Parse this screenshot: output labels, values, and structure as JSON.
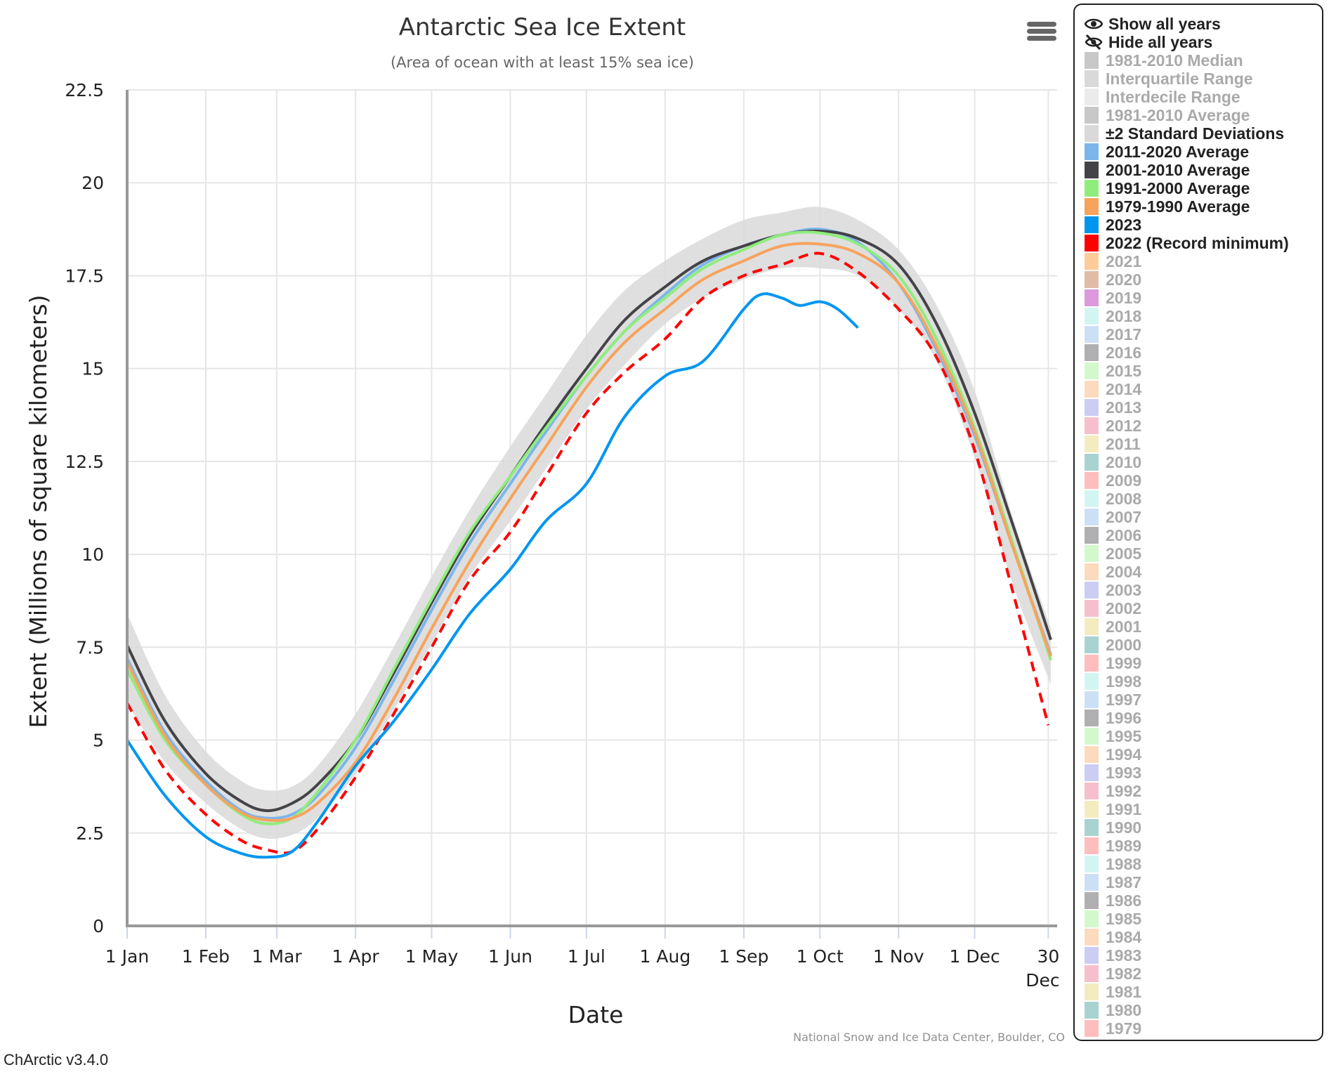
{
  "app": {
    "version": "ChArctic v3.4.0",
    "menu_icon": "hamburger-menu-icon"
  },
  "legend": {
    "show_all": {
      "label": "Show all years",
      "icon": "eye-icon"
    },
    "hide_all": {
      "label": "Hide all years",
      "icon": "eye-slash-icon"
    },
    "items": [
      {
        "label": "1981-2010 Median",
        "color": "#c8c8c8",
        "active": false
      },
      {
        "label": "Interquartile Range",
        "color": "#d9d9d9",
        "active": false
      },
      {
        "label": "Interdecile Range",
        "color": "#ebebeb",
        "active": false
      },
      {
        "label": "1981-2010 Average",
        "color": "#c8c8c8",
        "active": false
      },
      {
        "label": "±2 Standard Deviations",
        "color": "#d9d9d9",
        "active": true
      },
      {
        "label": "2011-2020 Average",
        "color": "#7cb5ec",
        "active": true
      },
      {
        "label": "2001-2010 Average",
        "color": "#434348",
        "active": true
      },
      {
        "label": "1991-2000 Average",
        "color": "#90ed7d",
        "active": true
      },
      {
        "label": "1979-1990 Average",
        "color": "#f7a35c",
        "active": true
      },
      {
        "label": "2023",
        "color": "#0096f0",
        "active": true
      },
      {
        "label": "2022 (Record minimum)",
        "color": "#ff0000",
        "active": true
      },
      {
        "label": "2021",
        "color": "#ffcc99",
        "active": false
      },
      {
        "label": "2020",
        "color": "#e0bca6",
        "active": false
      },
      {
        "label": "2019",
        "color": "#dd99dd",
        "active": false
      },
      {
        "label": "2018",
        "color": "#d3f5f2",
        "active": false
      },
      {
        "label": "2017",
        "color": "#cce0f5",
        "active": false
      },
      {
        "label": "2016",
        "color": "#b0b0b2",
        "active": false
      },
      {
        "label": "2015",
        "color": "#d3f8cc",
        "active": false
      },
      {
        "label": "2014",
        "color": "#fbdabd",
        "active": false
      },
      {
        "label": "2013",
        "color": "#cccdf3",
        "active": false
      },
      {
        "label": "2012",
        "color": "#f6bfcc",
        "active": false
      },
      {
        "label": "2011",
        "color": "#f4ecbf",
        "active": false
      },
      {
        "label": "2010",
        "color": "#a8d3d0",
        "active": false
      },
      {
        "label": "2009",
        "color": "#ffbdbd",
        "active": false
      },
      {
        "label": "2008",
        "color": "#d3f5f2",
        "active": false
      },
      {
        "label": "2007",
        "color": "#cce0f5",
        "active": false
      },
      {
        "label": "2006",
        "color": "#b0b0b2",
        "active": false
      },
      {
        "label": "2005",
        "color": "#d3f8cc",
        "active": false
      },
      {
        "label": "2004",
        "color": "#fbdabd",
        "active": false
      },
      {
        "label": "2003",
        "color": "#cccdf3",
        "active": false
      },
      {
        "label": "2002",
        "color": "#f6bfcc",
        "active": false
      },
      {
        "label": "2001",
        "color": "#f4ecbf",
        "active": false
      },
      {
        "label": "2000",
        "color": "#a8d3d0",
        "active": false
      },
      {
        "label": "1999",
        "color": "#ffbdbd",
        "active": false
      },
      {
        "label": "1998",
        "color": "#d3f5f2",
        "active": false
      },
      {
        "label": "1997",
        "color": "#cce0f5",
        "active": false
      },
      {
        "label": "1996",
        "color": "#b0b0b2",
        "active": false
      },
      {
        "label": "1995",
        "color": "#d3f8cc",
        "active": false
      },
      {
        "label": "1994",
        "color": "#fbdabd",
        "active": false
      },
      {
        "label": "1993",
        "color": "#cccdf3",
        "active": false
      },
      {
        "label": "1992",
        "color": "#f6bfcc",
        "active": false
      },
      {
        "label": "1991",
        "color": "#f4ecbf",
        "active": false
      },
      {
        "label": "1990",
        "color": "#a8d3d0",
        "active": false
      },
      {
        "label": "1989",
        "color": "#ffbdbd",
        "active": false
      },
      {
        "label": "1988",
        "color": "#d3f5f2",
        "active": false
      },
      {
        "label": "1987",
        "color": "#cce0f5",
        "active": false
      },
      {
        "label": "1986",
        "color": "#b0b0b2",
        "active": false
      },
      {
        "label": "1985",
        "color": "#d3f8cc",
        "active": false
      },
      {
        "label": "1984",
        "color": "#fbdabd",
        "active": false
      },
      {
        "label": "1983",
        "color": "#cccdf3",
        "active": false
      },
      {
        "label": "1982",
        "color": "#f6bfcc",
        "active": false
      },
      {
        "label": "1981",
        "color": "#f4ecbf",
        "active": false
      },
      {
        "label": "1980",
        "color": "#a8d3d0",
        "active": false
      },
      {
        "label": "1979",
        "color": "#ffbdbd",
        "active": false
      }
    ]
  },
  "chart_data": {
    "type": "line",
    "title": "Antarctic Sea Ice Extent",
    "subtitle": "(Area of ocean with at least 15% sea ice)",
    "xlabel": "Date",
    "ylabel": "Extent (Millions of square kilometers)",
    "credit": "National Snow and Ice Data Center, Boulder, CO",
    "xlim": [
      0,
      364
    ],
    "ylim": [
      0,
      22.5
    ],
    "grid": true,
    "legend_position": "right",
    "x_unit": "day of year (0 = 1 Jan)",
    "y_ticks": [
      {
        "value": 0,
        "label": "0"
      },
      {
        "value": 2.5,
        "label": "2.5"
      },
      {
        "value": 5,
        "label": "5"
      },
      {
        "value": 7.5,
        "label": "7.5"
      },
      {
        "value": 10,
        "label": "10"
      },
      {
        "value": 12.5,
        "label": "12.5"
      },
      {
        "value": 15,
        "label": "15"
      },
      {
        "value": 17.5,
        "label": "17.5"
      },
      {
        "value": 20,
        "label": "20"
      },
      {
        "value": 22.5,
        "label": "22.5"
      }
    ],
    "x_ticks": [
      {
        "day": 0,
        "label": "1 Jan"
      },
      {
        "day": 31,
        "label": "1 Feb"
      },
      {
        "day": 59,
        "label": "1 Mar"
      },
      {
        "day": 90,
        "label": "1 Apr"
      },
      {
        "day": 120,
        "label": "1 May"
      },
      {
        "day": 151,
        "label": "1 Jun"
      },
      {
        "day": 181,
        "label": "1 Jul"
      },
      {
        "day": 212,
        "label": "1 Aug"
      },
      {
        "day": 243,
        "label": "1 Sep"
      },
      {
        "day": 273,
        "label": "1 Oct"
      },
      {
        "day": 304,
        "label": "1 Nov"
      },
      {
        "day": 334,
        "label": "1 Dec"
      },
      {
        "day": 363,
        "label": "30",
        "label2": "Dec"
      }
    ],
    "band": {
      "name": "±2 Standard Deviations",
      "color": "#d9d9d9",
      "x": [
        0,
        15,
        31,
        45,
        55,
        65,
        75,
        90,
        105,
        120,
        135,
        151,
        165,
        181,
        196,
        212,
        227,
        243,
        258,
        273,
        288,
        304,
        319,
        334,
        349,
        364
      ],
      "upper": [
        8.4,
        6.2,
        4.7,
        3.9,
        3.65,
        3.75,
        4.3,
        5.7,
        7.5,
        9.4,
        11.2,
        12.9,
        14.3,
        15.9,
        17.1,
        17.9,
        18.5,
        19.0,
        19.2,
        19.35,
        19.0,
        18.2,
        16.7,
        14.4,
        11.0,
        8.0
      ],
      "lower": [
        6.0,
        4.4,
        3.3,
        2.6,
        2.35,
        2.45,
        2.9,
        4.1,
        5.8,
        7.6,
        9.4,
        10.9,
        12.3,
        13.9,
        15.1,
        16.2,
        16.9,
        17.4,
        17.7,
        17.7,
        17.5,
        16.6,
        15.2,
        12.6,
        9.2,
        6.5
      ]
    },
    "series": [
      {
        "name": "2011-2020 Average",
        "color": "#7cb5ec",
        "dash": false,
        "x": [
          0,
          15,
          31,
          45,
          55,
          65,
          75,
          90,
          105,
          120,
          135,
          151,
          165,
          181,
          196,
          212,
          227,
          243,
          258,
          273,
          288,
          304,
          319,
          334,
          349,
          364
        ],
        "values": [
          7.2,
          5.2,
          3.9,
          3.1,
          2.9,
          3.0,
          3.5,
          4.8,
          6.6,
          8.5,
          10.3,
          11.9,
          13.3,
          14.8,
          16.0,
          17.0,
          17.8,
          18.3,
          18.6,
          18.75,
          18.4,
          17.3,
          15.5,
          13.2,
          10.2,
          7.3
        ]
      },
      {
        "name": "2001-2010 Average",
        "color": "#434348",
        "dash": false,
        "x": [
          0,
          15,
          31,
          45,
          55,
          65,
          75,
          90,
          105,
          120,
          135,
          151,
          165,
          181,
          196,
          212,
          227,
          243,
          258,
          273,
          288,
          304,
          319,
          334,
          349,
          364
        ],
        "values": [
          7.55,
          5.5,
          4.1,
          3.35,
          3.1,
          3.3,
          3.8,
          5.0,
          6.8,
          8.7,
          10.5,
          12.1,
          13.5,
          15.0,
          16.3,
          17.2,
          17.9,
          18.3,
          18.6,
          18.7,
          18.5,
          17.8,
          16.2,
          13.8,
          10.8,
          7.7
        ]
      },
      {
        "name": "1991-2000 Average",
        "color": "#90ed7d",
        "dash": false,
        "x": [
          0,
          15,
          31,
          45,
          55,
          65,
          75,
          90,
          105,
          120,
          135,
          151,
          165,
          181,
          196,
          212,
          227,
          243,
          258,
          273,
          288,
          304,
          319,
          334,
          349,
          364
        ],
        "values": [
          6.9,
          5.0,
          3.8,
          3.0,
          2.75,
          2.9,
          3.6,
          5.0,
          6.9,
          8.8,
          10.6,
          12.1,
          13.4,
          14.8,
          16.0,
          16.9,
          17.7,
          18.2,
          18.6,
          18.65,
          18.35,
          17.5,
          15.8,
          13.4,
          10.3,
          7.15
        ]
      },
      {
        "name": "1979-1990 Average",
        "color": "#f7a35c",
        "dash": false,
        "x": [
          0,
          15,
          31,
          45,
          55,
          65,
          75,
          90,
          105,
          120,
          135,
          151,
          165,
          181,
          196,
          212,
          227,
          243,
          258,
          273,
          288,
          304,
          319,
          334,
          349,
          364
        ],
        "values": [
          7.1,
          5.1,
          3.8,
          3.05,
          2.85,
          2.9,
          3.3,
          4.4,
          6.1,
          8.0,
          9.8,
          11.5,
          12.9,
          14.5,
          15.7,
          16.6,
          17.4,
          17.9,
          18.3,
          18.35,
          18.1,
          17.3,
          15.6,
          13.3,
          10.2,
          7.25
        ]
      },
      {
        "name": "2022 (Record minimum)",
        "color": "#ff0000",
        "dash": true,
        "x": [
          0,
          15,
          31,
          45,
          55,
          65,
          75,
          90,
          105,
          120,
          135,
          151,
          165,
          181,
          196,
          212,
          227,
          243,
          258,
          273,
          288,
          304,
          319,
          334,
          349,
          363
        ],
        "values": [
          6.0,
          4.2,
          3.0,
          2.3,
          2.05,
          2.0,
          2.6,
          4.0,
          5.7,
          7.5,
          9.3,
          10.6,
          12.1,
          13.8,
          14.9,
          15.8,
          16.9,
          17.5,
          17.8,
          18.1,
          17.6,
          16.6,
          15.3,
          12.8,
          9.0,
          5.4
        ]
      },
      {
        "name": "2023",
        "color": "#0096f0",
        "dash": false,
        "x": [
          0,
          15,
          31,
          45,
          55,
          65,
          75,
          90,
          105,
          120,
          135,
          151,
          165,
          181,
          196,
          212,
          227,
          243,
          250,
          258,
          265,
          273,
          280,
          288
        ],
        "values": [
          5.0,
          3.5,
          2.4,
          1.95,
          1.85,
          2.0,
          2.8,
          4.3,
          5.5,
          6.9,
          8.4,
          9.6,
          10.9,
          11.9,
          13.7,
          14.8,
          15.2,
          16.6,
          17.0,
          16.9,
          16.7,
          16.8,
          16.6,
          16.1
        ]
      }
    ]
  }
}
